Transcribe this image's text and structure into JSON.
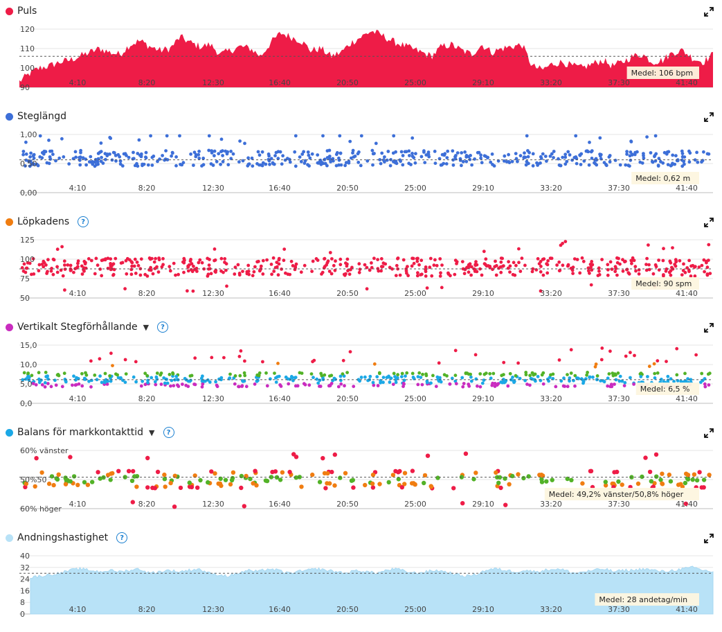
{
  "x_ticks": [
    "4:10",
    "8:20",
    "12:30",
    "16:40",
    "20:50",
    "25:00",
    "29:10",
    "33:20",
    "37:30",
    "41:40"
  ],
  "expand_icon": "expand-arrows-icon",
  "help_icon": "question-circle-icon",
  "charts": [
    {
      "key": "puls",
      "title": "Puls",
      "color": "#ee1c47",
      "has_help": false,
      "has_dropdown": false,
      "chart_data": {
        "type": "area",
        "y_ticks": [
          "120",
          "110",
          "100",
          "90"
        ],
        "ylim": [
          90,
          120
        ],
        "average_label": "Medel: 106 bpm",
        "average_value": 106,
        "xlim_seconds": [
          0,
          2770
        ],
        "series": [
          {
            "values_sampled": [
              93,
              97,
              100,
              101,
              103,
              104,
              106,
              108,
              110,
              108,
              107,
              112,
              114,
              111,
              109,
              110,
              116,
              113,
              111,
              112,
              107,
              109,
              111,
              110,
              106,
              113,
              118,
              116,
              114,
              109,
              110,
              106,
              108,
              113,
              116,
              119,
              117,
              114,
              112,
              110,
              108,
              106,
              111,
              112,
              109,
              107,
              112,
              108,
              110,
              111,
              112,
              101,
              99,
              102,
              103,
              101,
              100,
              102,
              104,
              101,
              103,
              106,
              107,
              103,
              104,
              108,
              109,
              105,
              103,
              107
            ]
          }
        ]
      }
    },
    {
      "key": "steglangd",
      "title": "Steglängd",
      "color": "#3d6fd8",
      "has_help": false,
      "has_dropdown": false,
      "chart_data": {
        "type": "scatter",
        "y_ticks": [
          "1,00",
          "0,50",
          "0,00"
        ],
        "ylim": [
          0,
          1.1
        ],
        "average_label": "Medel: 0,62 m",
        "average_value": 0.62,
        "typical_range": [
          0.5,
          0.8
        ],
        "outliers": [
          1.22,
          1.1,
          1.05,
          1.0,
          0.98,
          0.95
        ]
      }
    },
    {
      "key": "lopkadens",
      "title": "Löpkadens",
      "color": "#f07d11",
      "point_color": "#ee1c47",
      "has_help": true,
      "has_dropdown": false,
      "chart_data": {
        "type": "scatter",
        "y_ticks": [
          "125",
          "100",
          "75",
          "50"
        ],
        "ylim": [
          50,
          130
        ],
        "average_label": "Medel: 90 spm",
        "average_value": 90,
        "typical_range": [
          80,
          105
        ],
        "outliers": [
          125,
          122,
          120,
          118,
          65,
          62
        ]
      }
    },
    {
      "key": "vertikalt",
      "title": "Vertikalt Stegförhållande",
      "color": "#c92cbf",
      "has_help": true,
      "has_dropdown": true,
      "chart_data": {
        "type": "scatter",
        "y_ticks": [
          "15,0",
          "10,0",
          "5,0",
          "0,0"
        ],
        "ylim": [
          0,
          16
        ],
        "average_label": "Medel: 6,5 %",
        "average_value": 6.5,
        "zone_colors": [
          "#c92cbf",
          "#1ba8e6",
          "#52b227",
          "#f07d11",
          "#ee1c47"
        ],
        "typical_range": [
          4.5,
          8.5
        ],
        "outliers": [
          14.5,
          13.5,
          12,
          11,
          10.5
        ]
      }
    },
    {
      "key": "balans",
      "title": "Balans för markkontakttid",
      "color": "#1ba8e6",
      "has_help": true,
      "has_dropdown": true,
      "chart_data": {
        "type": "scatter",
        "y_ticks": [
          "60% vänster",
          "50%50",
          "60% höger"
        ],
        "ylim": [
          -10,
          10
        ],
        "average_label": "Medel: 49,2% vänster/50,8% höger",
        "average_value": 0.8,
        "zone_colors": [
          "#52b227",
          "#f07d11",
          "#ee1c47"
        ],
        "typical_range": [
          -3,
          3
        ],
        "outliers": [
          8.5,
          7.5,
          -8,
          -9
        ]
      }
    },
    {
      "key": "andning",
      "title": "Andningshastighet",
      "color": "#b8e2f7",
      "has_help": true,
      "has_dropdown": false,
      "chart_data": {
        "type": "area",
        "y_ticks": [
          "40",
          "32",
          "24",
          "16",
          "8",
          "0"
        ],
        "ylim": [
          0,
          40
        ],
        "average_label": "Medel: 28 andetag/min",
        "average_value": 28,
        "series": [
          {
            "values_sampled": [
              25,
              26,
              27,
              28,
              30,
              31,
              30,
              29,
              30,
              29,
              30,
              31,
              28,
              29,
              30,
              29,
              30,
              31,
              28,
              27,
              26,
              28,
              30,
              29,
              31,
              30,
              28,
              29,
              30,
              31,
              30,
              29,
              28,
              30,
              29,
              28,
              30,
              31,
              29,
              28,
              29,
              30,
              29,
              27,
              26,
              27,
              30,
              31,
              30,
              29,
              30,
              29,
              30,
              31,
              30,
              28,
              29,
              30,
              31,
              29,
              30,
              30,
              31,
              30,
              29,
              30,
              31,
              32,
              30,
              29
            ]
          }
        ]
      }
    }
  ]
}
